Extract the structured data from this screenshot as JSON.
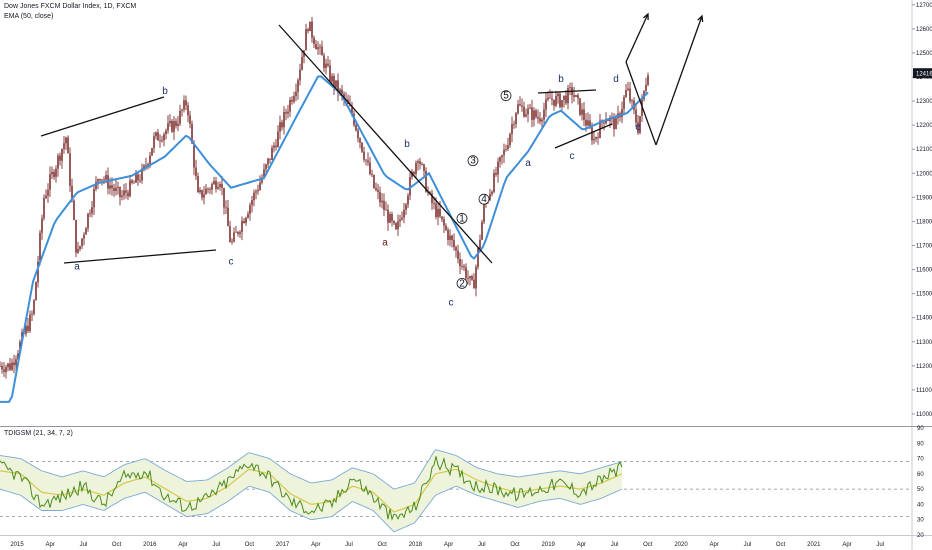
{
  "header": {
    "title": "Dow Jones FXCM Dollar Index, 1D, FXCM",
    "ema_label": "EMA (50, close)",
    "indicator_label": "TDIGSM (21, 34, 7, 2)"
  },
  "colors": {
    "candle": "#6b1212",
    "ema": "#3d8fd8",
    "trendline": "#111111",
    "wave_count_primary": "#1c2f6a",
    "wave_count_secondary": "#7a1414",
    "rsi_line": "#4a8a1c",
    "signal_line": "#d7c74a",
    "band": "#7aa8d6",
    "band_fill": "#eef4dc",
    "current_price_badge": "#131722"
  },
  "chart_data": {
    "type": "line",
    "title": "Dow Jones FXCM Dollar Index, 1D, FXCM",
    "price_scale": {
      "ticks": [
        11000,
        11100,
        11200,
        11300,
        11400,
        11500,
        11600,
        11700,
        11800,
        11900,
        12000,
        12100,
        12200,
        12300,
        12400,
        12500,
        12600,
        12700
      ],
      "range": [
        10950,
        12720
      ],
      "last_price_label": "12416"
    },
    "time_scale": {
      "ticks": [
        "2015",
        "Apr",
        "Jul",
        "Oct",
        "2016",
        "Apr",
        "Jul",
        "Oct",
        "2017",
        "Apr",
        "Jul",
        "Oct",
        "2018",
        "Apr",
        "Jul",
        "Oct",
        "2019",
        "Apr",
        "Jul",
        "Oct",
        "2020",
        "Apr",
        "Jul",
        "Oct",
        "2021",
        "Apr",
        "Jul"
      ]
    },
    "price_series": {
      "name": "Dow Jones FXCM Dollar Index",
      "x": [
        "2014-10",
        "2014-12",
        "2015-01",
        "2015-03",
        "2015-04",
        "2015-06",
        "2015-08",
        "2015-10",
        "2015-11",
        "2016-01",
        "2016-02",
        "2016-03",
        "2016-05",
        "2016-06",
        "2016-09",
        "2016-12",
        "2017-01",
        "2017-03",
        "2017-05",
        "2017-07",
        "2017-09",
        "2017-11",
        "2017-12",
        "2018-02",
        "2018-04",
        "2018-05",
        "2018-07",
        "2018-08",
        "2018-10",
        "2018-11",
        "2018-12",
        "2019-01",
        "2019-03",
        "2019-04",
        "2019-05",
        "2019-06",
        "2019-07",
        "2019-08"
      ],
      "values": [
        11200,
        11420,
        11900,
        12150,
        11650,
        12000,
        11900,
        12000,
        12140,
        12210,
        12300,
        11900,
        11980,
        11700,
        12000,
        12380,
        12620,
        12400,
        12250,
        11940,
        11750,
        12080,
        11900,
        11720,
        11520,
        11860,
        12110,
        12280,
        12230,
        12310,
        12300,
        12340,
        12140,
        12240,
        12200,
        12350,
        12190,
        12460
      ]
    },
    "ema_series": {
      "name": "EMA (50, close)",
      "x": [
        "2014-10",
        "2014-12",
        "2015-02",
        "2015-04",
        "2015-06",
        "2015-09",
        "2015-12",
        "2016-02",
        "2016-04",
        "2016-06",
        "2016-09",
        "2016-12",
        "2017-02",
        "2017-04",
        "2017-06",
        "2017-08",
        "2017-10",
        "2017-12",
        "2018-02",
        "2018-04",
        "2018-05",
        "2018-07",
        "2018-09",
        "2018-11",
        "2018-12",
        "2019-02",
        "2019-04",
        "2019-06",
        "2019-08"
      ],
      "values": [
        11050,
        11550,
        11800,
        11920,
        11960,
        11990,
        12070,
        12160,
        12040,
        11940,
        11980,
        12240,
        12410,
        12330,
        12160,
        11990,
        11930,
        12000,
        11820,
        11640,
        11700,
        11980,
        12090,
        12240,
        12260,
        12180,
        12220,
        12250,
        12340
      ]
    },
    "indicator": {
      "name": "TDIGSM (21, 34, 7, 2)",
      "range": [
        20,
        90
      ],
      "ticks": [
        20,
        30,
        40,
        50,
        60,
        70,
        80,
        90
      ],
      "levels": [
        32,
        50,
        68
      ],
      "rsi_values": [
        65,
        58,
        40,
        45,
        52,
        40,
        58,
        62,
        45,
        38,
        44,
        55,
        68,
        58,
        42,
        36,
        40,
        58,
        45,
        30,
        38,
        68,
        62,
        52,
        50,
        46,
        50,
        54,
        48,
        56,
        64
      ],
      "signal_values": [
        62,
        60,
        48,
        46,
        50,
        46,
        54,
        58,
        50,
        42,
        44,
        52,
        63,
        60,
        47,
        40,
        42,
        52,
        48,
        35,
        40,
        60,
        63,
        56,
        51,
        48,
        50,
        52,
        50,
        54,
        60
      ],
      "upper_band": [
        72,
        70,
        62,
        58,
        62,
        58,
        66,
        70,
        62,
        55,
        56,
        64,
        74,
        70,
        60,
        54,
        56,
        64,
        60,
        50,
        54,
        76,
        72,
        64,
        60,
        58,
        60,
        62,
        60,
        64,
        68
      ],
      "lower_band": [
        50,
        46,
        36,
        36,
        40,
        36,
        44,
        48,
        40,
        32,
        34,
        42,
        52,
        48,
        36,
        30,
        32,
        42,
        36,
        22,
        28,
        46,
        52,
        46,
        42,
        38,
        42,
        44,
        40,
        44,
        50
      ]
    },
    "annotations": [
      {
        "text": "a",
        "date": "2015-04",
        "price": 11600
      },
      {
        "text": "b",
        "date": "2015-12",
        "price": 12330
      },
      {
        "text": "c",
        "date": "2016-06",
        "price": 11620
      },
      {
        "text": "b",
        "date": "2017-10",
        "price": 12110
      },
      {
        "text": "a",
        "date": "2017-08",
        "price": 11700
      },
      {
        "text": "c",
        "date": "2018-02",
        "price": 11450
      },
      {
        "text": "a",
        "date": "2018-09",
        "price": 12030
      },
      {
        "text": "b",
        "date": "2018-12",
        "price": 12380
      },
      {
        "text": "c",
        "date": "2019-01",
        "price": 12060
      },
      {
        "text": "d",
        "date": "2019-05",
        "price": 12380
      },
      {
        "text": "e",
        "date": "2019-07",
        "price": 12180
      },
      {
        "text": "1",
        "date": "2018-03",
        "price": 11800
      },
      {
        "text": "2",
        "date": "2018-03",
        "price": 11530
      },
      {
        "text": "3",
        "date": "2018-04",
        "price": 12040
      },
      {
        "text": "4",
        "date": "2018-05",
        "price": 11880
      },
      {
        "text": "5",
        "date": "2018-07",
        "price": 12310
      }
    ],
    "grid": false,
    "legend_position": "top-left"
  }
}
